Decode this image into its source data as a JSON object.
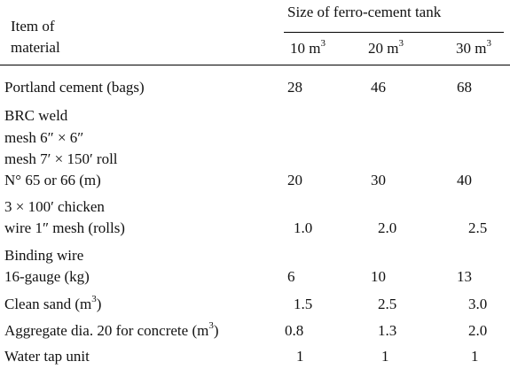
{
  "header": {
    "item_label_line1": "Item of",
    "item_label_line2": "material",
    "group_title": "Size of ferro-cement tank",
    "columns": [
      {
        "base": "10 m",
        "sup": "3"
      },
      {
        "base": "20 m",
        "sup": "3"
      },
      {
        "base": "30 m",
        "sup": "3"
      }
    ]
  },
  "rows": [
    {
      "label_lines": [
        "Portland cement (bags)"
      ],
      "values": [
        "28",
        "46",
        "68"
      ]
    },
    {
      "label_lines": [
        "BRC weld",
        "mesh 6″ × 6″",
        "mesh 7′ × 150′ roll",
        "N° 65 or 66 (m)"
      ],
      "values": [
        "20",
        "30",
        "40"
      ]
    },
    {
      "label_lines": [
        "3 × 100′ chicken",
        "wire 1″ mesh (rolls)"
      ],
      "values": [
        "1.0",
        "2.0",
        "2.5"
      ]
    },
    {
      "label_lines": [
        "Binding wire",
        "16-gauge (kg)"
      ],
      "values": [
        "6",
        "10",
        "13"
      ]
    },
    {
      "label_lines": [
        "Clean sand (m",
        "3",
        ")"
      ],
      "values": [
        "1.5",
        "2.5",
        "3.0"
      ]
    },
    {
      "label_lines": [
        "Aggregate dia. 20 for concrete (m",
        "3",
        ")"
      ],
      "values": [
        "0.8",
        "1.3",
        "2.0"
      ]
    },
    {
      "label_lines": [
        "Water tap unit"
      ],
      "values": [
        "1",
        "1",
        "1"
      ]
    }
  ]
}
